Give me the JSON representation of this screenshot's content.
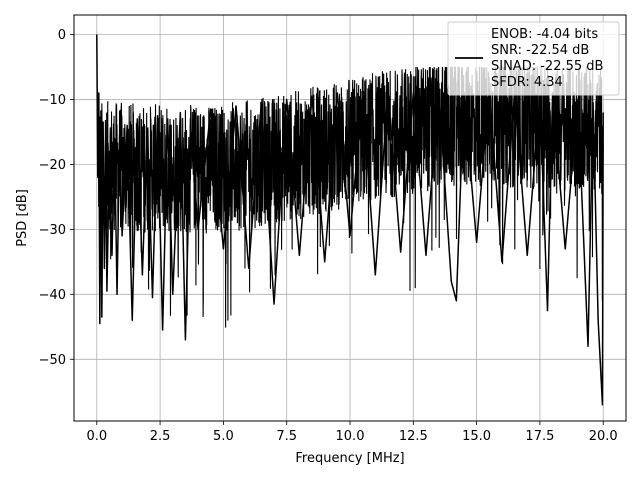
{
  "chart_data": {
    "type": "line",
    "title": "",
    "xlabel": "Frequency [MHz]",
    "ylabel": "PSD [dB]",
    "xlim": [
      -0.9,
      20.9
    ],
    "ylim": [
      -59.5,
      3.0
    ],
    "xticks": [
      0.0,
      2.5,
      5.0,
      7.5,
      10.0,
      12.5,
      15.0,
      17.5,
      20.0
    ],
    "xtick_labels": [
      "0.0",
      "2.5",
      "5.0",
      "7.5",
      "10.0",
      "12.5",
      "15.0",
      "17.5",
      "20.0"
    ],
    "yticks": [
      0,
      -10,
      -20,
      -30,
      -40,
      -50
    ],
    "ytick_labels": [
      "0",
      "−10",
      "−20",
      "−30",
      "−40",
      "−50"
    ],
    "grid": true,
    "legend_position": "top-right",
    "series": [
      {
        "label_lines": [
          "ENOB: -4.04 bits",
          "SNR: -22.54 dB",
          "SINAD: -22.55 dB",
          "SFDR: 4.34"
        ],
        "color": "#000000",
        "description": "noisy PSD spectrum, mostly between -10 and -30 dB",
        "x": [
          0.0,
          0.04,
          0.08,
          0.12,
          0.16,
          0.2,
          0.25,
          0.3,
          0.35,
          0.4,
          0.5,
          0.6,
          0.7,
          0.8,
          0.9,
          1.0,
          1.2,
          1.4,
          1.6,
          1.8,
          2.0,
          2.2,
          2.4,
          2.6,
          2.8,
          3.0,
          3.3,
          3.5,
          3.7,
          4.0,
          4.5,
          5.0,
          5.5,
          6.0,
          6.5,
          7.0,
          7.5,
          8.0,
          8.5,
          9.0,
          9.5,
          10.0,
          10.5,
          11.0,
          11.5,
          12.0,
          12.5,
          13.0,
          13.5,
          14.0,
          14.2,
          14.5,
          15.0,
          15.5,
          16.0,
          16.5,
          17.0,
          17.5,
          17.8,
          18.0,
          18.5,
          19.0,
          19.4,
          19.6,
          19.8,
          19.97,
          20.0
        ],
        "y": [
          0.0,
          -22.0,
          -9.0,
          -44.5,
          -16.0,
          -43.5,
          -13.5,
          -36.0,
          -17.0,
          -39.5,
          -18.0,
          -34.0,
          -16.0,
          -40.0,
          -15.5,
          -31.0,
          -14.0,
          -44.0,
          -13.0,
          -37.0,
          -14.5,
          -40.5,
          -12.5,
          -45.5,
          -13.0,
          -40.0,
          -12.0,
          -47.0,
          -14.0,
          -30.0,
          -11.5,
          -33.0,
          -11.0,
          -36.0,
          -10.5,
          -41.5,
          -10.0,
          -34.0,
          -9.5,
          -35.0,
          -9.0,
          -31.0,
          -9.0,
          -37.0,
          -8.5,
          -33.5,
          -9.0,
          -34.0,
          -8.5,
          -38.0,
          -41.0,
          -9.0,
          -32.0,
          -8.5,
          -35.0,
          -9.0,
          -34.0,
          -9.5,
          -42.5,
          -9.0,
          -33.0,
          -10.0,
          -48.0,
          -10.5,
          -44.0,
          -57.0,
          -12.0
        ]
      }
    ]
  }
}
